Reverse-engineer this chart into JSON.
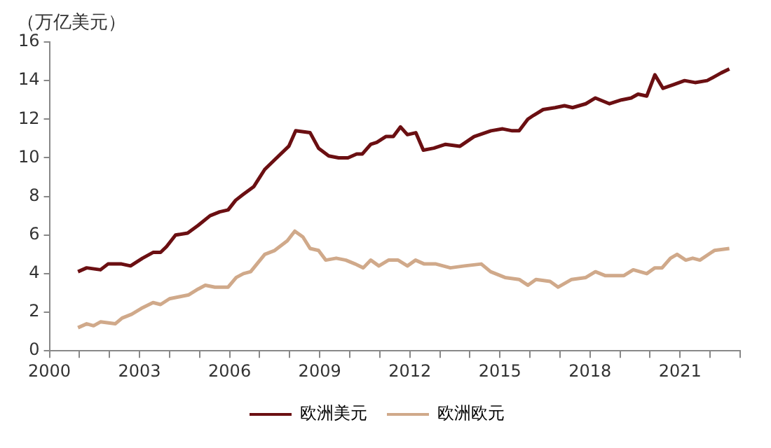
{
  "chart_data": {
    "type": "line",
    "ylabel": "（万亿美元）",
    "xlim": [
      2000,
      2023
    ],
    "xticks": [
      2000,
      {
        "value": 2001,
        "label": null
      },
      {
        "value": 2002,
        "label": null
      },
      2003,
      {
        "value": 2004,
        "label": null
      },
      {
        "value": 2005,
        "label": null
      },
      2006,
      {
        "value": 2007,
        "label": null
      },
      {
        "value": 2008,
        "label": null
      },
      2009,
      {
        "value": 2010,
        "label": null
      },
      {
        "value": 2011,
        "label": null
      },
      2012,
      {
        "value": 2013,
        "label": null
      },
      {
        "value": 2014,
        "label": null
      },
      2015,
      {
        "value": 2016,
        "label": null
      },
      {
        "value": 2017,
        "label": null
      },
      2018,
      {
        "value": 2019,
        "label": null
      },
      {
        "value": 2020,
        "label": null
      },
      2021,
      {
        "value": 2022,
        "label": null
      },
      {
        "value": 2023,
        "label": null
      }
    ],
    "ylim": [
      0,
      16
    ],
    "yticks": [
      0,
      2,
      4,
      6,
      8,
      10,
      12,
      14,
      16
    ],
    "grid": false,
    "legend": "bottom",
    "marker": "none",
    "line_style": "solid",
    "series": [
      {
        "name": "欧洲美元",
        "color": "#6b0f12",
        "x": [
          2000.95,
          2001.24,
          2001.7,
          2001.95,
          2002.4,
          2002.7,
          2003.1,
          2003.45,
          2003.7,
          2003.9,
          2004.2,
          2004.6,
          2004.95,
          2005.35,
          2005.67,
          2005.95,
          2006.2,
          2006.45,
          2006.8,
          2007.17,
          2007.5,
          2007.97,
          2008.2,
          2008.68,
          2008.96,
          2009.3,
          2009.63,
          2009.94,
          2010.23,
          2010.42,
          2010.7,
          2010.9,
          2011.2,
          2011.45,
          2011.69,
          2011.92,
          2012.2,
          2012.45,
          2012.8,
          2013.19,
          2013.67,
          2014.14,
          2014.7,
          2015.09,
          2015.41,
          2015.64,
          2015.93,
          2016.12,
          2016.44,
          2016.84,
          2017.15,
          2017.42,
          2017.86,
          2018.18,
          2018.65,
          2019.05,
          2019.37,
          2019.6,
          2019.89,
          2020.16,
          2020.43,
          2020.8,
          2021.15,
          2021.5,
          2021.9,
          2022.14,
          2022.37,
          2022.64
        ],
        "values": [
          4.1,
          4.3,
          4.2,
          4.5,
          4.5,
          4.4,
          4.8,
          5.1,
          5.1,
          5.4,
          6.0,
          6.1,
          6.5,
          7.0,
          7.2,
          7.3,
          7.8,
          8.1,
          8.5,
          9.4,
          9.9,
          10.6,
          11.4,
          11.3,
          10.5,
          10.1,
          10.0,
          10.0,
          10.2,
          10.2,
          10.7,
          10.8,
          11.1,
          11.1,
          11.6,
          11.2,
          11.3,
          10.4,
          10.5,
          10.7,
          10.6,
          11.1,
          11.4,
          11.5,
          11.4,
          11.4,
          12.0,
          12.2,
          12.5,
          12.6,
          12.7,
          12.6,
          12.8,
          13.1,
          12.8,
          13.0,
          13.1,
          13.3,
          13.2,
          14.3,
          13.6,
          13.8,
          14.0,
          13.9,
          14.0,
          14.2,
          14.4,
          14.6
        ]
      },
      {
        "name": "欧洲欧元",
        "color": "#d0a98a",
        "x": [
          2000.95,
          2001.24,
          2001.47,
          2001.7,
          2002.19,
          2002.42,
          2002.74,
          2003.06,
          2003.45,
          2003.7,
          2004.0,
          2004.32,
          2004.64,
          2004.95,
          2005.19,
          2005.51,
          2005.95,
          2006.22,
          2006.46,
          2006.7,
          2007.17,
          2007.5,
          2007.92,
          2008.17,
          2008.44,
          2008.68,
          2008.96,
          2009.2,
          2009.55,
          2009.87,
          2010.18,
          2010.45,
          2010.7,
          2010.97,
          2011.29,
          2011.61,
          2011.92,
          2012.19,
          2012.48,
          2012.87,
          2013.35,
          2013.82,
          2014.38,
          2014.69,
          2015.17,
          2015.64,
          2015.93,
          2016.2,
          2016.67,
          2016.94,
          2017.39,
          2017.86,
          2018.18,
          2018.5,
          2019.13,
          2019.44,
          2019.89,
          2020.16,
          2020.4,
          2020.68,
          2020.9,
          2021.19,
          2021.42,
          2021.66,
          2022.14,
          2022.64
        ],
        "values": [
          1.2,
          1.4,
          1.3,
          1.5,
          1.4,
          1.7,
          1.9,
          2.2,
          2.5,
          2.4,
          2.7,
          2.8,
          2.9,
          3.2,
          3.4,
          3.3,
          3.3,
          3.8,
          4.0,
          4.1,
          5.0,
          5.2,
          5.7,
          6.2,
          5.9,
          5.3,
          5.2,
          4.7,
          4.8,
          4.7,
          4.5,
          4.3,
          4.7,
          4.4,
          4.7,
          4.7,
          4.4,
          4.7,
          4.5,
          4.5,
          4.3,
          4.4,
          4.5,
          4.1,
          3.8,
          3.7,
          3.4,
          3.7,
          3.6,
          3.3,
          3.7,
          3.8,
          4.1,
          3.9,
          3.9,
          4.2,
          4.0,
          4.3,
          4.3,
          4.8,
          5.0,
          4.7,
          4.8,
          4.7,
          5.2,
          5.3
        ]
      }
    ]
  }
}
